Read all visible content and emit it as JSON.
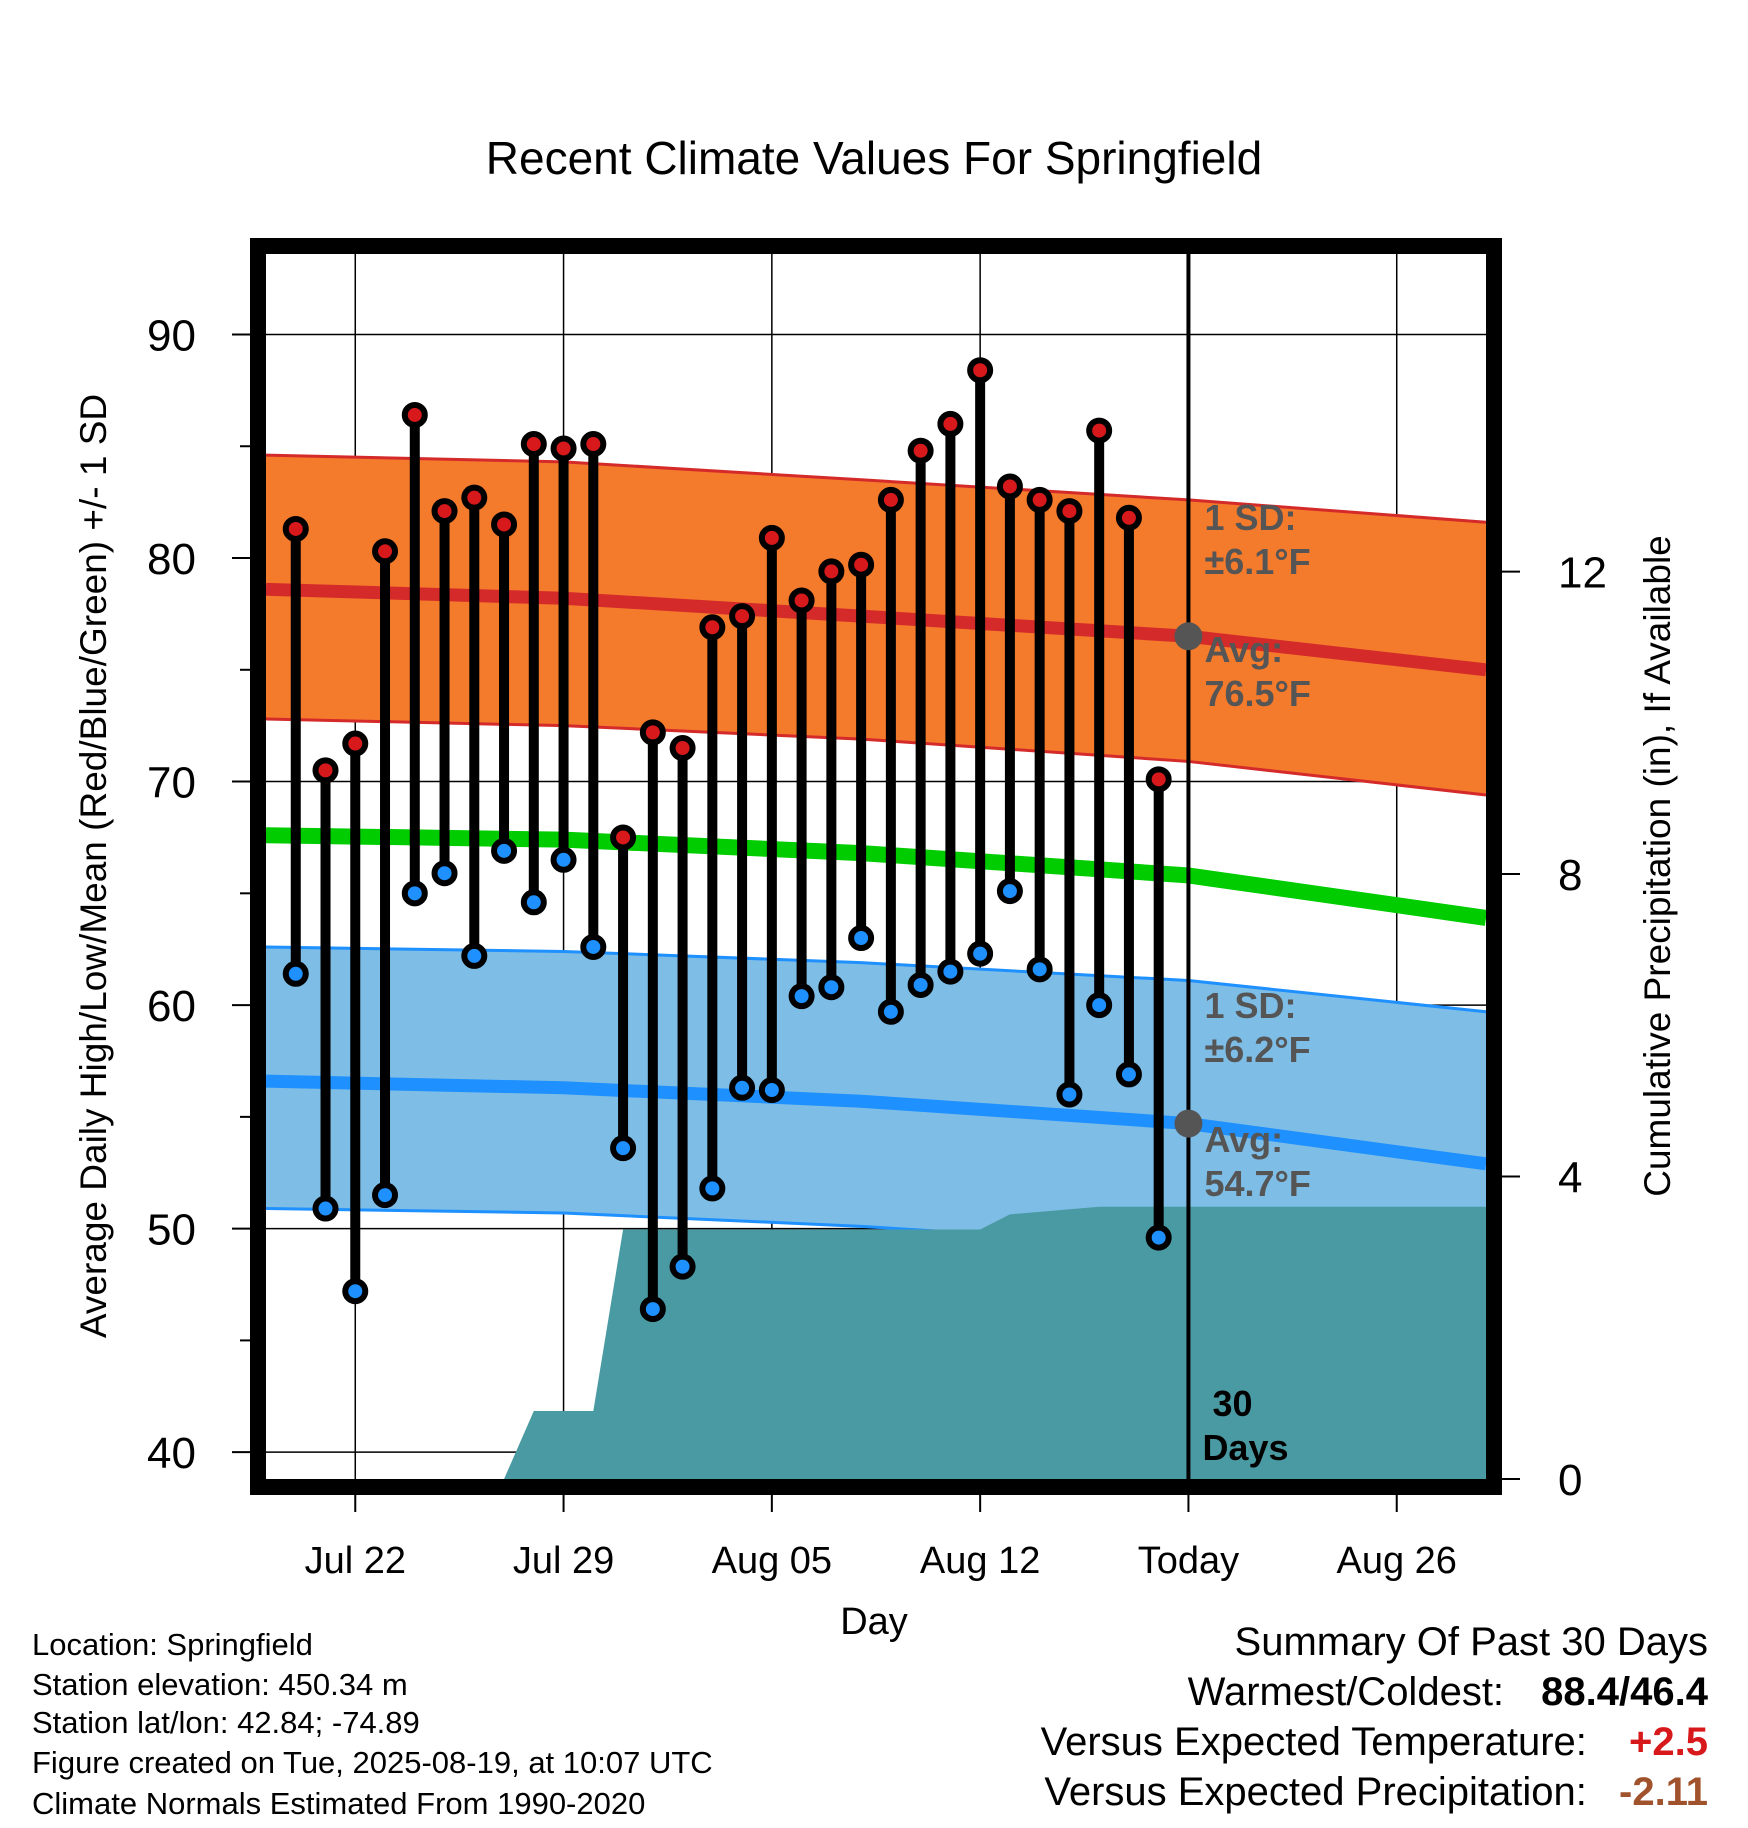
{
  "chart_data": {
    "type": "line",
    "title": "Recent Climate Values For Springfield",
    "xlabel": "Day",
    "ylabel": "Average Daily High/Low/Mean (Red/Blue/Green) +/- 1 SD",
    "y2label": "Cumulative Precipitation (in), If Available",
    "ylim": [
      38.8,
      93.6
    ],
    "y_ticks": [
      40,
      50,
      60,
      70,
      80,
      90
    ],
    "y2lim": [
      0,
      16.2
    ],
    "y2_ticks": [
      0,
      4,
      8,
      12
    ],
    "x_start": "2025-07-19",
    "x_end": "2025-08-29",
    "x_ticks": [
      {
        "date": "2025-07-22",
        "label": "Jul 22"
      },
      {
        "date": "2025-07-29",
        "label": "Jul 29"
      },
      {
        "date": "2025-08-05",
        "label": "Aug 05"
      },
      {
        "date": "2025-08-12",
        "label": "Aug 12"
      },
      {
        "date": "2025-08-19",
        "label": "Today"
      },
      {
        "date": "2025-08-26",
        "label": "Aug 26"
      }
    ],
    "grid": true,
    "today": "2025-08-19",
    "series": [
      {
        "name": "High",
        "color": "#d7191c",
        "x": [
          "2025-07-20",
          "2025-07-21",
          "2025-07-22",
          "2025-07-23",
          "2025-07-24",
          "2025-07-25",
          "2025-07-26",
          "2025-07-27",
          "2025-07-28",
          "2025-07-29",
          "2025-07-30",
          "2025-07-31",
          "2025-08-01",
          "2025-08-02",
          "2025-08-03",
          "2025-08-04",
          "2025-08-05",
          "2025-08-06",
          "2025-08-07",
          "2025-08-08",
          "2025-08-09",
          "2025-08-10",
          "2025-08-11",
          "2025-08-12",
          "2025-08-13",
          "2025-08-14",
          "2025-08-15",
          "2025-08-16",
          "2025-08-17",
          "2025-08-18"
        ],
        "values": [
          81.3,
          70.5,
          71.7,
          80.3,
          86.4,
          82.1,
          82.7,
          81.5,
          85.1,
          84.9,
          85.1,
          67.5,
          72.2,
          71.5,
          76.9,
          77.4,
          80.9,
          78.1,
          79.4,
          79.7,
          82.6,
          84.8,
          86.0,
          88.4,
          83.2,
          82.6,
          82.1,
          85.7,
          81.8,
          70.1
        ]
      },
      {
        "name": "Low",
        "color": "#1e90ff",
        "x": [
          "2025-07-20",
          "2025-07-21",
          "2025-07-22",
          "2025-07-23",
          "2025-07-24",
          "2025-07-25",
          "2025-07-26",
          "2025-07-27",
          "2025-07-28",
          "2025-07-29",
          "2025-07-30",
          "2025-07-31",
          "2025-08-01",
          "2025-08-02",
          "2025-08-03",
          "2025-08-04",
          "2025-08-05",
          "2025-08-06",
          "2025-08-07",
          "2025-08-08",
          "2025-08-09",
          "2025-08-10",
          "2025-08-11",
          "2025-08-12",
          "2025-08-13",
          "2025-08-14",
          "2025-08-15",
          "2025-08-16",
          "2025-08-17",
          "2025-08-18"
        ],
        "values": [
          61.4,
          50.9,
          47.2,
          51.5,
          65.0,
          65.9,
          62.2,
          66.9,
          64.6,
          66.5,
          62.6,
          53.6,
          46.4,
          48.3,
          51.8,
          56.3,
          56.2,
          60.4,
          60.8,
          63.0,
          59.7,
          60.9,
          61.5,
          62.3,
          65.1,
          61.6,
          56.0,
          60.0,
          56.9,
          49.6
        ]
      }
    ],
    "normals": {
      "x": [
        "2025-07-19",
        "2025-07-29",
        "2025-08-08",
        "2025-08-19",
        "2025-08-29"
      ],
      "high_avg": [
        78.6,
        78.2,
        77.4,
        76.5,
        75.0
      ],
      "high_upper": [
        84.6,
        84.3,
        83.5,
        82.6,
        81.6
      ],
      "high_lower": [
        72.8,
        72.5,
        71.9,
        70.9,
        69.4
      ],
      "mean": [
        67.6,
        67.4,
        66.8,
        65.8,
        63.9
      ],
      "low_avg": [
        56.6,
        56.3,
        55.7,
        54.7,
        52.9
      ],
      "low_upper": [
        62.6,
        62.4,
        61.9,
        61.1,
        59.7
      ],
      "low_lower": [
        50.9,
        50.7,
        50.1,
        49.2,
        46.8
      ]
    },
    "precip": {
      "x": [
        "2025-07-27",
        "2025-07-28",
        "2025-07-30",
        "2025-07-31",
        "2025-08-12",
        "2025-08-13",
        "2025-08-16",
        "2025-08-29"
      ],
      "values": [
        0.0,
        0.9,
        0.9,
        3.3,
        3.3,
        3.5,
        3.6,
        3.6
      ]
    },
    "annotations": {
      "high_sd": [
        "1 SD:",
        "±6.1°F"
      ],
      "high_avg": [
        "Avg:",
        "76.5°F"
      ],
      "low_sd": [
        "1 SD:",
        "±6.2°F"
      ],
      "low_avg": [
        "Avg:",
        "54.7°F"
      ],
      "precip_window": [
        "30",
        "Days"
      ]
    }
  },
  "info": {
    "location": "Location: Springfield",
    "elevation": "Station elevation: 450.34 m",
    "latlon": "Station lat/lon: 42.84; -74.89",
    "created": "Figure created on Tue, 2025-08-19, at 10:07 UTC",
    "normals": "Climate Normals Estimated From 1990-2020"
  },
  "summary": {
    "title": "Summary Of Past 30 Days",
    "warmest_label": "Warmest/Coldest:",
    "warmest_value": "88.4/46.4",
    "temp_label": "Versus Expected Temperature:",
    "temp_value": "+2.5",
    "temp_color": "#d7191c",
    "precip_label": "Versus Expected Precipitation:",
    "precip_value": "-2.11",
    "precip_color": "#a0522d"
  },
  "colors": {
    "high_band": "#f47a2c",
    "high_line": "#d42a2a",
    "mean_line": "#00cc00",
    "low_band": "#7dbde6",
    "low_line": "#1e90ff",
    "precip_fill": "#4a9aa3",
    "point_ring": "#000000",
    "annotation": "#555555"
  }
}
